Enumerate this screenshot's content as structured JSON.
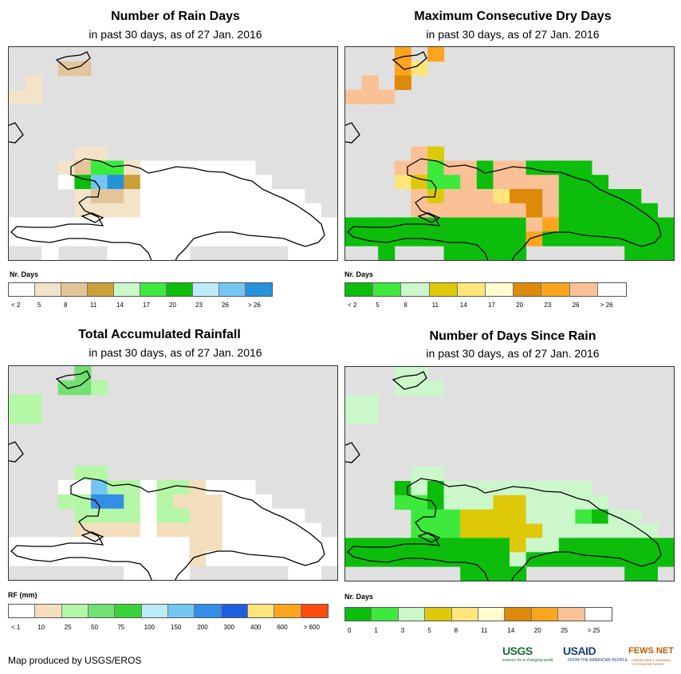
{
  "panels": [
    {
      "title": "Number of Rain Days",
      "subtitle": "in past 30 days, as of 27 Jan. 2016",
      "legend_title": "Nr. Days",
      "legend_colors": [
        "#ffffff",
        "#f3e3c9",
        "#e2c598",
        "#cba037",
        "#cbf7cb",
        "#3ee93e",
        "#0cbd0c",
        "#bdebfa",
        "#74c6f2",
        "#2592da"
      ],
      "legend_labels": [
        "< 2",
        "5",
        "8",
        "11",
        "14",
        "17",
        "20",
        "23",
        "26",
        "> 26"
      ],
      "cells": [
        [
          0,
          0,
          0,
          0,
          0,
          0,
          0,
          0,
          0,
          0,
          0,
          0,
          0,
          0,
          0,
          0,
          0,
          0,
          0,
          0
        ],
        [
          0,
          0,
          0,
          2,
          2,
          0,
          0,
          0,
          0,
          0,
          0,
          0,
          0,
          0,
          0,
          0,
          0,
          0,
          0,
          0
        ],
        [
          0,
          1,
          0,
          0,
          0,
          0,
          0,
          0,
          0,
          0,
          0,
          0,
          0,
          0,
          0,
          0,
          0,
          0,
          0,
          0
        ],
        [
          1,
          1,
          0,
          0,
          0,
          0,
          0,
          0,
          0,
          0,
          0,
          0,
          0,
          0,
          0,
          0,
          0,
          0,
          0,
          0
        ],
        [
          0,
          0,
          0,
          0,
          1,
          1,
          1,
          1,
          1,
          1,
          1,
          1,
          1,
          1,
          0,
          0,
          0,
          0,
          0,
          0
        ],
        [
          0,
          0,
          0,
          0,
          1,
          1,
          1,
          1,
          2,
          1,
          0,
          1,
          0,
          1,
          0,
          0,
          1,
          1,
          0,
          0
        ],
        [
          0,
          0,
          0,
          0,
          0,
          2,
          1,
          1,
          0,
          1,
          0,
          0,
          0,
          0,
          0,
          0,
          0,
          3,
          2,
          0
        ],
        [
          0,
          0,
          0,
          0,
          1,
          1,
          1,
          0,
          0,
          0,
          0,
          1,
          0,
          0,
          0,
          0,
          0,
          0,
          0,
          2
        ],
        [
          0,
          0,
          0,
          1,
          2,
          5,
          5,
          1,
          0,
          0,
          0,
          0,
          0,
          0,
          0,
          0,
          0,
          0,
          0,
          0
        ],
        [
          0,
          0,
          0,
          0,
          6,
          8,
          9,
          3,
          0,
          0,
          0,
          0,
          0,
          0,
          0,
          0,
          0,
          0,
          0,
          0
        ],
        [
          1,
          1,
          1,
          1,
          1,
          2,
          2,
          1,
          0,
          0,
          0,
          0,
          0,
          0,
          0,
          0,
          0,
          0,
          0,
          0
        ],
        [
          0,
          1,
          1,
          1,
          1,
          1,
          1,
          1,
          0,
          0,
          0,
          0,
          0,
          0,
          0,
          0,
          0,
          0,
          0,
          0
        ],
        [
          0,
          0,
          0,
          0,
          0,
          0,
          0,
          0,
          0,
          0,
          0,
          0,
          0,
          0,
          0,
          0,
          0,
          0,
          0,
          0
        ],
        [
          0,
          0,
          0,
          0,
          0,
          0,
          0,
          0,
          0,
          0,
          0,
          0,
          0,
          0,
          0,
          0,
          0,
          0,
          0,
          0
        ],
        [
          0,
          0,
          0,
          0,
          0,
          0,
          0,
          0,
          0,
          0,
          0,
          0,
          0,
          0,
          0,
          0,
          0,
          0,
          0,
          0
        ]
      ]
    },
    {
      "title": "Maximum Consecutive Dry Days",
      "subtitle": "in past 30 days, as of 27 Jan. 2016",
      "legend_title": "Nr. Days",
      "legend_colors": [
        "#0cbd0c",
        "#3ee93e",
        "#cbf7cb",
        "#ddc90a",
        "#ffe57a",
        "#fffccf",
        "#de8a0a",
        "#fba51f",
        "#fbc196",
        "#ffffff"
      ],
      "legend_labels": [
        "< 2",
        "5",
        "8",
        "11",
        "14",
        "17",
        "20",
        "23",
        "26",
        "> 26"
      ],
      "cells": [
        [
          0,
          0,
          0,
          7,
          0,
          7,
          0,
          0,
          0,
          0,
          0,
          0,
          0,
          0,
          0,
          0,
          0,
          0,
          0,
          0
        ],
        [
          0,
          0,
          0,
          7,
          4,
          0,
          0,
          0,
          0,
          0,
          0,
          0,
          0,
          0,
          0,
          0,
          0,
          0,
          0,
          0
        ],
        [
          0,
          8,
          0,
          6,
          0,
          0,
          0,
          0,
          0,
          0,
          0,
          0,
          0,
          0,
          0,
          0,
          0,
          0,
          0,
          0
        ],
        [
          8,
          8,
          8,
          0,
          0,
          0,
          0,
          0,
          0,
          0,
          0,
          0,
          0,
          0,
          0,
          0,
          0,
          0,
          0,
          0
        ],
        [
          0,
          0,
          0,
          0,
          7,
          8,
          7,
          7,
          8,
          8,
          8,
          8,
          8,
          8,
          0,
          0,
          0,
          0,
          0,
          0
        ],
        [
          0,
          0,
          0,
          0,
          8,
          8,
          8,
          8,
          8,
          8,
          8,
          8,
          8,
          8,
          8,
          8,
          3,
          2,
          2,
          0
        ],
        [
          0,
          0,
          0,
          0,
          0,
          3,
          8,
          6,
          8,
          8,
          8,
          8,
          8,
          8,
          8,
          8,
          8,
          2,
          2,
          0
        ],
        [
          0,
          0,
          0,
          0,
          8,
          3,
          8,
          8,
          8,
          8,
          8,
          8,
          8,
          8,
          8,
          8,
          8,
          8,
          2,
          8
        ],
        [
          0,
          8,
          8,
          8,
          8,
          1,
          8,
          8,
          0,
          8,
          8,
          0,
          0,
          0,
          0,
          0,
          0,
          0,
          0,
          8
        ],
        [
          8,
          8,
          8,
          4,
          3,
          1,
          1,
          8,
          0,
          8,
          8,
          8,
          8,
          0,
          0,
          0,
          0,
          0,
          0,
          8
        ],
        [
          8,
          8,
          8,
          8,
          8,
          3,
          8,
          8,
          8,
          4,
          6,
          6,
          8,
          0,
          0,
          0,
          0,
          0,
          0,
          2
        ],
        [
          0,
          8,
          8,
          8,
          8,
          8,
          8,
          8,
          8,
          8,
          8,
          6,
          8,
          0,
          0,
          0,
          0,
          0,
          0,
          0
        ],
        [
          0,
          0,
          0,
          0,
          0,
          0,
          0,
          0,
          0,
          0,
          0,
          8,
          7,
          0,
          0,
          0,
          0,
          0,
          0,
          0
        ],
        [
          0,
          0,
          0,
          0,
          0,
          0,
          0,
          0,
          0,
          0,
          0,
          7,
          0,
          0,
          0,
          0,
          0,
          0,
          0,
          0
        ],
        [
          0,
          0,
          0,
          0,
          0,
          0,
          0,
          0,
          0,
          0,
          0,
          0,
          0,
          0,
          0,
          0,
          0,
          0,
          0,
          0
        ]
      ]
    },
    {
      "title": "Total Accumulated Rainfall",
      "subtitle": "in past 30 days, as of 27 Jan. 2016",
      "legend_title": "RF (mm)",
      "legend_colors": [
        "#ffffff",
        "#f3dfbd",
        "#b4f7a6",
        "#72e072",
        "#3ad23a",
        "#bdebfa",
        "#74c6f2",
        "#338ee6",
        "#1e5ee0",
        "#ffe57a",
        "#fba51f",
        "#fb4b0f"
      ],
      "legend_labels": [
        "< 1",
        "10",
        "25",
        "50",
        "75",
        "100",
        "150",
        "200",
        "300",
        "400",
        "600",
        "> 600"
      ],
      "cells": [
        [
          0,
          0,
          0,
          0,
          3,
          0,
          0,
          0,
          0,
          0,
          0,
          0,
          0,
          0,
          0,
          0,
          0,
          0,
          0,
          0
        ],
        [
          0,
          0,
          0,
          3,
          3,
          2,
          0,
          0,
          0,
          0,
          0,
          0,
          0,
          0,
          0,
          0,
          0,
          0,
          0,
          0
        ],
        [
          2,
          2,
          0,
          0,
          0,
          0,
          0,
          0,
          0,
          0,
          0,
          0,
          0,
          0,
          0,
          0,
          0,
          0,
          0,
          0
        ],
        [
          2,
          2,
          0,
          0,
          0,
          0,
          0,
          0,
          0,
          0,
          0,
          0,
          0,
          0,
          0,
          0,
          0,
          0,
          0,
          0
        ],
        [
          0,
          0,
          0,
          0,
          3,
          3,
          3,
          3,
          3,
          3,
          3,
          3,
          3,
          1,
          0,
          0,
          0,
          0,
          0,
          0
        ],
        [
          0,
          0,
          0,
          0,
          2,
          3,
          2,
          2,
          2,
          2,
          2,
          1,
          1,
          1,
          1,
          1,
          0,
          0,
          0,
          0
        ],
        [
          0,
          0,
          0,
          0,
          0,
          2,
          2,
          2,
          2,
          2,
          2,
          1,
          1,
          1,
          1,
          1,
          2,
          2,
          0,
          0
        ],
        [
          0,
          0,
          0,
          0,
          2,
          2,
          2,
          2,
          2,
          2,
          2,
          1,
          1,
          1,
          1,
          1,
          1,
          1,
          1,
          0
        ],
        [
          0,
          0,
          0,
          0,
          0,
          6,
          2,
          2,
          0,
          2,
          2,
          1,
          0,
          0,
          0,
          0,
          0,
          0,
          0,
          1
        ],
        [
          1,
          2,
          2,
          2,
          2,
          7,
          7,
          2,
          0,
          2,
          1,
          1,
          1,
          0,
          0,
          0,
          0,
          0,
          0,
          1
        ],
        [
          2,
          2,
          2,
          2,
          2,
          2,
          2,
          2,
          0,
          2,
          2,
          1,
          1,
          0,
          0,
          0,
          0,
          0,
          0,
          0
        ],
        [
          0,
          2,
          2,
          2,
          1,
          1,
          1,
          1,
          0,
          1,
          1,
          1,
          1,
          0,
          0,
          0,
          0,
          0,
          0,
          0
        ],
        [
          0,
          0,
          0,
          0,
          0,
          0,
          0,
          0,
          0,
          0,
          0,
          1,
          1,
          0,
          0,
          0,
          0,
          0,
          0,
          0
        ],
        [
          0,
          0,
          0,
          0,
          0,
          0,
          0,
          0,
          0,
          0,
          0,
          1,
          0,
          0,
          0,
          0,
          0,
          0,
          0,
          0
        ],
        [
          0,
          0,
          0,
          0,
          0,
          0,
          0,
          0,
          0,
          0,
          0,
          0,
          0,
          0,
          0,
          0,
          0,
          0,
          0,
          0
        ]
      ]
    },
    {
      "title": "Number of Days Since Rain",
      "subtitle": "in past 30 days, as of 27 Jan. 2016",
      "legend_title": "Nr. Days",
      "legend_colors": [
        "#0cbd0c",
        "#3ee93e",
        "#cbf7cb",
        "#ddc90a",
        "#ffe57a",
        "#fffccf",
        "#de8a0a",
        "#fba51f",
        "#fbc196",
        "#ffffff"
      ],
      "legend_labels": [
        "0",
        "1",
        "3",
        "5",
        "8",
        "11",
        "14",
        "20",
        "25",
        "> 25"
      ],
      "cells": [
        [
          0,
          0,
          0,
          2,
          2,
          0,
          0,
          0,
          0,
          0,
          0,
          0,
          0,
          0,
          0,
          0,
          0,
          0,
          0,
          0
        ],
        [
          0,
          0,
          0,
          2,
          2,
          2,
          0,
          0,
          0,
          0,
          0,
          0,
          0,
          0,
          0,
          0,
          0,
          0,
          0,
          0
        ],
        [
          2,
          2,
          0,
          0,
          0,
          0,
          0,
          0,
          0,
          0,
          0,
          0,
          0,
          0,
          0,
          0,
          0,
          0,
          0,
          0
        ],
        [
          2,
          2,
          0,
          0,
          0,
          0,
          0,
          0,
          0,
          0,
          0,
          0,
          0,
          0,
          0,
          0,
          0,
          0,
          0,
          0
        ],
        [
          0,
          0,
          0,
          0,
          2,
          2,
          2,
          2,
          2,
          2,
          2,
          2,
          2,
          2,
          0,
          0,
          0,
          0,
          0,
          0
        ],
        [
          0,
          0,
          0,
          0,
          2,
          2,
          2,
          2,
          2,
          2,
          1,
          2,
          2,
          1,
          1,
          2,
          0,
          0,
          0,
          0
        ],
        [
          0,
          0,
          0,
          0,
          0,
          2,
          2,
          2,
          2,
          2,
          2,
          1,
          1,
          1,
          1,
          1,
          1,
          1,
          2,
          0
        ],
        [
          0,
          0,
          0,
          0,
          2,
          2,
          2,
          2,
          2,
          2,
          2,
          2,
          1,
          2,
          2,
          2,
          2,
          2,
          2,
          2
        ],
        [
          0,
          0,
          0,
          0,
          2,
          0,
          2,
          2,
          2,
          2,
          2,
          2,
          2,
          2,
          2,
          2,
          2,
          2,
          2,
          2
        ],
        [
          1,
          1,
          1,
          1,
          1,
          0,
          2,
          2,
          2,
          3,
          3,
          2,
          2,
          2,
          2,
          2,
          2,
          2,
          2,
          1
        ],
        [
          2,
          1,
          1,
          1,
          1,
          1,
          1,
          3,
          3,
          3,
          3,
          2,
          2,
          2,
          1,
          0,
          2,
          2,
          2,
          1
        ],
        [
          0,
          1,
          1,
          1,
          1,
          1,
          1,
          3,
          3,
          3,
          3,
          3,
          2,
          2,
          2,
          2,
          2,
          2,
          2,
          2
        ],
        [
          0,
          0,
          0,
          0,
          0,
          0,
          0,
          0,
          0,
          0,
          3,
          2,
          2,
          0,
          0,
          0,
          0,
          0,
          0,
          0
        ],
        [
          0,
          0,
          0,
          0,
          0,
          0,
          0,
          0,
          0,
          0,
          2,
          0,
          0,
          0,
          0,
          0,
          0,
          0,
          0,
          0
        ],
        [
          0,
          0,
          0,
          0,
          0,
          0,
          0,
          0,
          0,
          0,
          0,
          0,
          0,
          0,
          0,
          0,
          0,
          0,
          0,
          0
        ]
      ]
    }
  ],
  "footer": {
    "credit": "Map produced by USGS/EROS",
    "logos": {
      "usgs": "USGS",
      "usgs_tagline": "science for a changing world",
      "usaid": "USAID",
      "usaid_tagline": "FROM THE AMERICAN PEOPLE",
      "fews": "FEWS NET",
      "fews_tagline": "FAMINE EARLY WARNING SYSTEMS NETWORK"
    }
  }
}
